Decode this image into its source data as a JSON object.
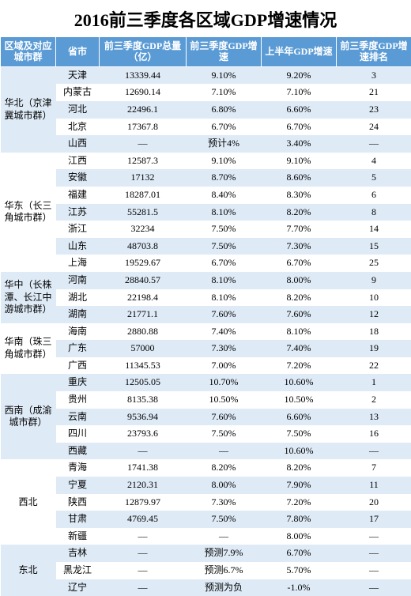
{
  "title": "2016前三季度各区域GDP增速情况",
  "columns": [
    "区域及对应城市群",
    "省市",
    "前三季度GDP总量（亿）",
    "前三季度GDP增速",
    "上半年GDP增速",
    "前三季度GDP增速排名"
  ],
  "col_widths": [
    "70px",
    "55px",
    "110px",
    "95px",
    "95px",
    "95px"
  ],
  "header_bg": "#5b9bd5",
  "header_fg": "#ffffff",
  "band_colors": [
    "#deeaf6",
    "#ffffff"
  ],
  "regions": [
    {
      "name": "华北（京津冀城市群）",
      "rows": [
        {
          "prov": "天津",
          "gdp": "13339.44",
          "q3": "9.10%",
          "h1": "9.20%",
          "rank": "3"
        },
        {
          "prov": "内蒙古",
          "gdp": "12690.14",
          "q3": "7.10%",
          "h1": "7.10%",
          "rank": "21"
        },
        {
          "prov": "河北",
          "gdp": "22496.1",
          "q3": "6.80%",
          "h1": "6.60%",
          "rank": "23"
        },
        {
          "prov": "北京",
          "gdp": "17367.8",
          "q3": "6.70%",
          "h1": "6.70%",
          "rank": "24"
        },
        {
          "prov": "山西",
          "gdp": "—",
          "q3": "预计4%",
          "h1": "3.40%",
          "rank": "—"
        }
      ]
    },
    {
      "name": "华东（长三角城市群）",
      "rows": [
        {
          "prov": "江西",
          "gdp": "12587.3",
          "q3": "9.10%",
          "h1": "9.10%",
          "rank": "4"
        },
        {
          "prov": "安徽",
          "gdp": "17132",
          "q3": "8.70%",
          "h1": "8.60%",
          "rank": "5"
        },
        {
          "prov": "福建",
          "gdp": "18287.01",
          "q3": "8.40%",
          "h1": "8.30%",
          "rank": "6"
        },
        {
          "prov": "江苏",
          "gdp": "55281.5",
          "q3": "8.10%",
          "h1": "8.20%",
          "rank": "8"
        },
        {
          "prov": "浙江",
          "gdp": "32234",
          "q3": "7.50%",
          "h1": "7.70%",
          "rank": "14"
        },
        {
          "prov": "山东",
          "gdp": "48703.8",
          "q3": "7.50%",
          "h1": "7.30%",
          "rank": "15"
        },
        {
          "prov": "上海",
          "gdp": "19529.67",
          "q3": "6.70%",
          "h1": "6.70%",
          "rank": "25"
        }
      ]
    },
    {
      "name": "华中（长株潭、长江中游城市群）",
      "rows": [
        {
          "prov": "河南",
          "gdp": "28840.57",
          "q3": "8.10%",
          "h1": "8.00%",
          "rank": "9"
        },
        {
          "prov": "湖北",
          "gdp": "22198.4",
          "q3": "8.10%",
          "h1": "8.20%",
          "rank": "10"
        },
        {
          "prov": "湖南",
          "gdp": "21771.1",
          "q3": "7.60%",
          "h1": "7.60%",
          "rank": "12"
        }
      ]
    },
    {
      "name": "华南（珠三角城市群）",
      "rows": [
        {
          "prov": "海南",
          "gdp": "2880.88",
          "q3": "7.40%",
          "h1": "8.10%",
          "rank": "18"
        },
        {
          "prov": "广东",
          "gdp": "57000",
          "q3": "7.30%",
          "h1": "7.40%",
          "rank": "19"
        },
        {
          "prov": "广西",
          "gdp": "11345.53",
          "q3": "7.00%",
          "h1": "7.20%",
          "rank": "22"
        }
      ]
    },
    {
      "name": "西南（成渝城市群）",
      "rows": [
        {
          "prov": "重庆",
          "gdp": "12505.05",
          "q3": "10.70%",
          "h1": "10.60%",
          "rank": "1"
        },
        {
          "prov": "贵州",
          "gdp": "8135.38",
          "q3": "10.50%",
          "h1": "10.50%",
          "rank": "2"
        },
        {
          "prov": "云南",
          "gdp": "9536.94",
          "q3": "7.60%",
          "h1": "6.60%",
          "rank": "13"
        },
        {
          "prov": "四川",
          "gdp": "23793.6",
          "q3": "7.50%",
          "h1": "7.50%",
          "rank": "16"
        },
        {
          "prov": "西藏",
          "gdp": "—",
          "q3": "—",
          "h1": "10.60%",
          "rank": "—"
        }
      ]
    },
    {
      "name": "西北",
      "rows": [
        {
          "prov": "青海",
          "gdp": "1741.38",
          "q3": "8.20%",
          "h1": "8.20%",
          "rank": "7"
        },
        {
          "prov": "宁夏",
          "gdp": "2120.31",
          "q3": "8.00%",
          "h1": "7.90%",
          "rank": "11"
        },
        {
          "prov": "陕西",
          "gdp": "12879.97",
          "q3": "7.30%",
          "h1": "7.20%",
          "rank": "20"
        },
        {
          "prov": "甘肃",
          "gdp": "4769.45",
          "q3": "7.50%",
          "h1": "7.80%",
          "rank": "17"
        },
        {
          "prov": "新疆",
          "gdp": "—",
          "q3": "—",
          "h1": "8.00%",
          "rank": "—"
        }
      ]
    },
    {
      "name": "东北",
      "rows": [
        {
          "prov": "吉林",
          "gdp": "—",
          "q3": "预测7.9%",
          "h1": "6.70%",
          "rank": "—"
        },
        {
          "prov": "黑龙江",
          "gdp": "—",
          "q3": "预测6.7%",
          "h1": "5.70%",
          "rank": "—"
        },
        {
          "prov": "辽宁",
          "gdp": "—",
          "q3": "预测为负",
          "h1": "-1.0%",
          "rank": "—"
        }
      ]
    }
  ]
}
